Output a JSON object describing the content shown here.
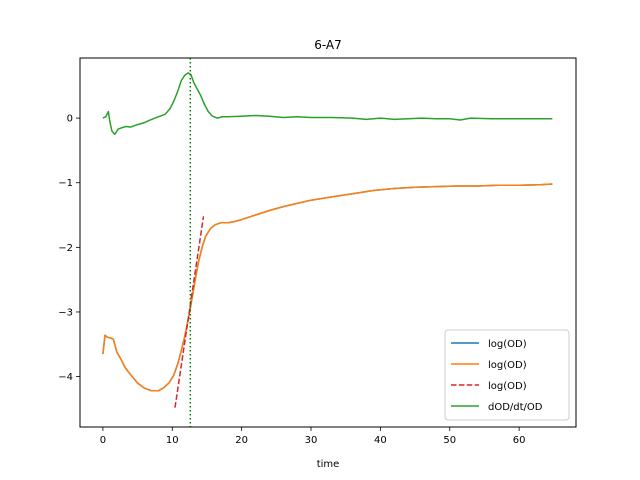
{
  "chart_data": {
    "type": "line",
    "title": "6-A7",
    "xlabel": "time",
    "ylabel": "",
    "xlim": [
      -3.3,
      68.2
    ],
    "ylim": [
      -4.78,
      0.93
    ],
    "xticks": [
      0,
      10,
      20,
      30,
      40,
      50,
      60
    ],
    "yticks": [
      -4,
      -3,
      -2,
      -1,
      0
    ],
    "ytick_labels": [
      "−4",
      "−3",
      "−2",
      "−1",
      "0"
    ],
    "grid": false,
    "legend_position": "lower-right",
    "vline": {
      "x": 12.6,
      "color": "#008000",
      "style": "dotted"
    },
    "series": [
      {
        "name": "log(OD)",
        "color": "#1f77b4",
        "style": "solid",
        "x": [
          0,
          0.3,
          0.6,
          1.0,
          1.5,
          2.0,
          2.6,
          3.2,
          4.0,
          5.0,
          6.0,
          7.0,
          8.0,
          8.8,
          9.5,
          10.2,
          10.8,
          11.3,
          11.8,
          12.3,
          12.8,
          13.3,
          13.8,
          14.3,
          14.8,
          15.5,
          16.2,
          17.0,
          18.0,
          19.0,
          20.0,
          22.0,
          24.0,
          26.0,
          28.0,
          30.0,
          33.0,
          36.0,
          39.0,
          42.0,
          45.0,
          48.0,
          51.0,
          54.0,
          57.0,
          60.0,
          63.0,
          64.8
        ],
        "y": [
          -3.65,
          -3.36,
          -3.39,
          -3.4,
          -3.42,
          -3.62,
          -3.73,
          -3.86,
          -3.97,
          -4.1,
          -4.18,
          -4.22,
          -4.22,
          -4.17,
          -4.1,
          -3.98,
          -3.8,
          -3.6,
          -3.38,
          -3.12,
          -2.82,
          -2.5,
          -2.22,
          -2.0,
          -1.83,
          -1.71,
          -1.65,
          -1.62,
          -1.62,
          -1.6,
          -1.57,
          -1.5,
          -1.43,
          -1.37,
          -1.32,
          -1.27,
          -1.22,
          -1.17,
          -1.12,
          -1.09,
          -1.07,
          -1.06,
          -1.05,
          -1.05,
          -1.04,
          -1.04,
          -1.03,
          -1.02
        ]
      },
      {
        "name": "log(OD)",
        "color": "#ff7f0e",
        "style": "solid",
        "x": [
          0,
          0.3,
          0.6,
          1.0,
          1.5,
          2.0,
          2.6,
          3.2,
          4.0,
          5.0,
          6.0,
          7.0,
          8.0,
          8.8,
          9.5,
          10.2,
          10.8,
          11.3,
          11.8,
          12.3,
          12.8,
          13.3,
          13.8,
          14.3,
          14.8,
          15.5,
          16.2,
          17.0,
          18.0,
          19.0,
          20.0,
          22.0,
          24.0,
          26.0,
          28.0,
          30.0,
          33.0,
          36.0,
          39.0,
          42.0,
          45.0,
          48.0,
          51.0,
          54.0,
          57.0,
          60.0,
          63.0,
          64.8
        ],
        "y": [
          -3.65,
          -3.36,
          -3.39,
          -3.4,
          -3.42,
          -3.62,
          -3.73,
          -3.86,
          -3.97,
          -4.1,
          -4.18,
          -4.22,
          -4.22,
          -4.17,
          -4.1,
          -3.98,
          -3.8,
          -3.6,
          -3.38,
          -3.12,
          -2.82,
          -2.5,
          -2.22,
          -2.0,
          -1.83,
          -1.71,
          -1.65,
          -1.62,
          -1.62,
          -1.6,
          -1.57,
          -1.5,
          -1.43,
          -1.37,
          -1.32,
          -1.27,
          -1.22,
          -1.17,
          -1.12,
          -1.09,
          -1.07,
          -1.06,
          -1.05,
          -1.05,
          -1.04,
          -1.04,
          -1.03,
          -1.02
        ]
      },
      {
        "name": "log(OD)",
        "color": "#d62728",
        "style": "dashed",
        "x": [
          10.4,
          14.5
        ],
        "y": [
          -4.48,
          -1.52
        ]
      },
      {
        "name": "dOD/dt/OD",
        "color": "#2ca02c",
        "style": "solid",
        "x": [
          0,
          0.4,
          0.8,
          1.0,
          1.3,
          1.7,
          2.2,
          2.7,
          3.3,
          4.0,
          5.0,
          6.0,
          7.0,
          8.0,
          9.0,
          9.7,
          10.3,
          10.8,
          11.3,
          11.8,
          12.3,
          12.7,
          13.1,
          13.6,
          14.1,
          14.6,
          15.2,
          15.8,
          16.5,
          17.2,
          18.0,
          20.0,
          22.0,
          24.0,
          26.0,
          28.0,
          30.0,
          33.0,
          36.0,
          38.0,
          40.0,
          42.0,
          44.0,
          46.0,
          48.0,
          50.0,
          51.5,
          53.0,
          56.0,
          60.0,
          64.8
        ],
        "y": [
          0.0,
          0.02,
          0.1,
          -0.05,
          -0.2,
          -0.25,
          -0.17,
          -0.15,
          -0.13,
          -0.14,
          -0.1,
          -0.07,
          -0.02,
          0.02,
          0.06,
          0.15,
          0.28,
          0.42,
          0.58,
          0.66,
          0.7,
          0.67,
          0.55,
          0.45,
          0.35,
          0.22,
          0.1,
          0.03,
          0.0,
          0.02,
          0.02,
          0.03,
          0.04,
          0.03,
          0.01,
          0.02,
          0.01,
          0.01,
          0.0,
          -0.02,
          0.0,
          -0.02,
          -0.01,
          0.0,
          -0.01,
          -0.01,
          -0.03,
          0.0,
          -0.01,
          -0.01,
          -0.01
        ]
      }
    ]
  }
}
